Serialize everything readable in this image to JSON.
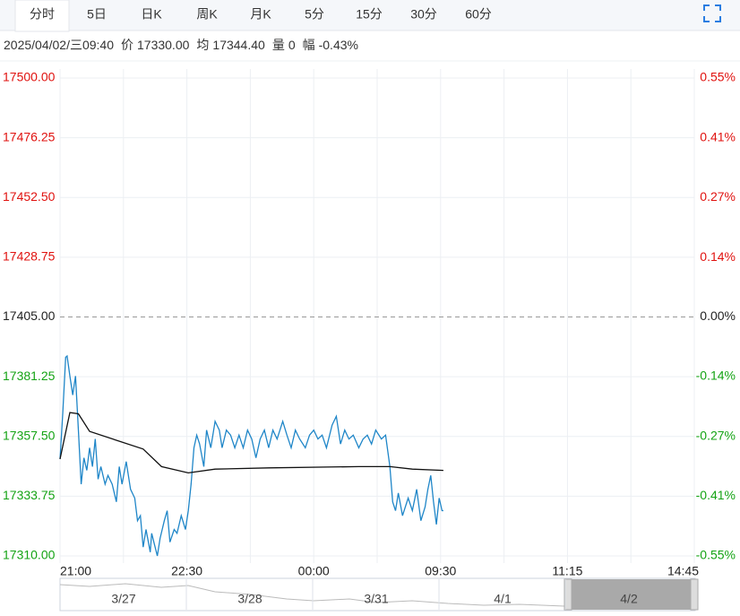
{
  "tabs": [
    "分时",
    "5日",
    "日K",
    "周K",
    "月K",
    "5分",
    "15分",
    "30分",
    "60分"
  ],
  "active_tab": 0,
  "info": {
    "datetime": "2025/04/02/三09:40",
    "price_label": "价",
    "price": "17330.00",
    "avg_label": "均",
    "avg": "17344.40",
    "volume_label": "量",
    "volume": "0",
    "change_label": "幅",
    "change": "-0.43%"
  },
  "chart_data": {
    "type": "line",
    "prev_close": 17405,
    "up_color": "#e0120f",
    "down_color": "#14a314",
    "flat_color": "#222222",
    "xlim": [
      0,
      450
    ],
    "xticks": [
      {
        "value": 0,
        "label": "21:00"
      },
      {
        "value": 90,
        "label": "22:30"
      },
      {
        "value": 180,
        "label": "00:00"
      },
      {
        "value": 270,
        "label": "09:30"
      },
      {
        "value": 360,
        "label": "11:15"
      },
      {
        "value": 450,
        "label": "14:45"
      }
    ],
    "ylim": [
      17310,
      17500
    ],
    "yticks": [
      {
        "value": 17500,
        "label": "17500.00"
      },
      {
        "value": 17476.25,
        "label": "17476.25"
      },
      {
        "value": 17452.5,
        "label": "17452.50"
      },
      {
        "value": 17428.75,
        "label": "17428.75"
      },
      {
        "value": 17405,
        "label": "17405.00"
      },
      {
        "value": 17381.25,
        "label": "17381.25"
      },
      {
        "value": 17357.5,
        "label": "17357.50"
      },
      {
        "value": 17333.75,
        "label": "17333.75"
      },
      {
        "value": 17310,
        "label": "17310.00"
      }
    ],
    "y2lim": [
      -0.546,
      0.546
    ],
    "y2ticks": [
      {
        "value": 0.546,
        "label": "0.55%"
      },
      {
        "value": 0.409,
        "label": "0.41%"
      },
      {
        "value": 0.273,
        "label": "0.27%"
      },
      {
        "value": 0.136,
        "label": "0.14%"
      },
      {
        "value": 0,
        "label": "0.00%"
      },
      {
        "value": -0.136,
        "label": "-0.14%"
      },
      {
        "value": -0.273,
        "label": "-0.27%"
      },
      {
        "value": -0.409,
        "label": "-0.41%"
      },
      {
        "value": -0.546,
        "label": "-0.55%"
      }
    ],
    "series": [
      {
        "color": "#1f86c8",
        "x": [
          0,
          2,
          4,
          5,
          7,
          9,
          11,
          13,
          15,
          17,
          19,
          21,
          23,
          25,
          27,
          29,
          32,
          34,
          37,
          40,
          42,
          44,
          47,
          50,
          53,
          55,
          57,
          59,
          61,
          64,
          65,
          69,
          71,
          74,
          76,
          78,
          81,
          83,
          86,
          89,
          91,
          93,
          95,
          97,
          99,
          102,
          104,
          107,
          110,
          113,
          115,
          118,
          121,
          124,
          127,
          130,
          133,
          136,
          139,
          142,
          145,
          148,
          151,
          154,
          158,
          161,
          164,
          167,
          170,
          174,
          177,
          180,
          183,
          186,
          189,
          193,
          196,
          199,
          202,
          205,
          208,
          212,
          215,
          218,
          221,
          224,
          228,
          231,
          234,
          236,
          238,
          240,
          243,
          247,
          250,
          253,
          256,
          259,
          261,
          263,
          265,
          267,
          269,
          271,
          272
        ],
        "values": [
          17348.5,
          17367,
          17389,
          17389.5,
          17381.5,
          17374,
          17381.5,
          17360,
          17338.5,
          17349,
          17344,
          17353,
          17345.5,
          17356.5,
          17340.5,
          17345.5,
          17338.5,
          17342,
          17338.5,
          17331.5,
          17345.5,
          17338.5,
          17347.5,
          17336.5,
          17333,
          17324,
          17326,
          17313.5,
          17320.5,
          17311.5,
          17319,
          17310,
          17317,
          17324,
          17328,
          17315.5,
          17320.5,
          17319,
          17326,
          17320.5,
          17328,
          17338.5,
          17353,
          17358,
          17354.5,
          17345.5,
          17360,
          17353,
          17363.5,
          17360,
          17353,
          17360,
          17358,
          17353,
          17358,
          17353,
          17360,
          17356.5,
          17349,
          17356.5,
          17360,
          17353,
          17360,
          17356.5,
          17363.5,
          17358,
          17353,
          17360,
          17356.5,
          17353,
          17358,
          17360,
          17356.5,
          17358,
          17353,
          17362,
          17365.5,
          17354.5,
          17360,
          17356.5,
          17358,
          17353,
          17356.5,
          17358,
          17354.5,
          17360,
          17356.5,
          17358,
          17345.5,
          17331.5,
          17328,
          17335,
          17326,
          17333,
          17328,
          17336.5,
          17324,
          17329.5,
          17336.5,
          17342,
          17331.5,
          17322.5,
          17333,
          17328,
          17328
        ]
      },
      {
        "color": "#111111",
        "x": [
          0,
          7,
          13,
          21,
          40,
          59,
          72,
          91,
          110,
          148,
          212,
          234,
          250,
          272
        ],
        "values": [
          17348.5,
          17367,
          17366.5,
          17359.5,
          17356,
          17352.5,
          17345.5,
          17343,
          17344.5,
          17345,
          17345.5,
          17345.5,
          17344.5,
          17344
        ]
      }
    ]
  },
  "navigator": {
    "labels": [
      "3/27",
      "3/28",
      "3/31",
      "4/1",
      "4/2"
    ]
  }
}
